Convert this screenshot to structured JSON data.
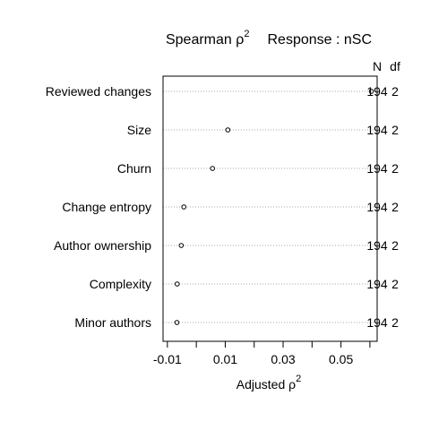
{
  "chart_data": {
    "type": "scatter",
    "title_left": "Spearman ρ",
    "title_left_sup": "2",
    "title_right": "Response : nSC",
    "xlabel": "Adjusted ρ",
    "xlabel_sup": "2",
    "xlim": [
      -0.0115,
      0.0625
    ],
    "x_ticks": [
      -0.01,
      0.01,
      0.03,
      0.05
    ],
    "x_tick_labels": [
      "-0.01",
      "0.01",
      "0.03",
      "0.05"
    ],
    "x_minor_ticks": [
      0.0,
      0.02,
      0.04,
      0.06
    ],
    "grid": "dotted horizontal",
    "right_columns": [
      "N",
      "df"
    ],
    "categories": [
      "Reviewed changes",
      "Size",
      "Churn",
      "Change entropy",
      "Author ownership",
      "Complexity",
      "Minor authors"
    ],
    "values": [
      0.0605,
      0.0109,
      0.0056,
      -0.0043,
      -0.0052,
      -0.0066,
      -0.0067
    ],
    "n": [
      "194",
      "194",
      "194",
      "194",
      "194",
      "194",
      "194"
    ],
    "df": [
      "2",
      "2",
      "2",
      "2",
      "2",
      "2",
      "2"
    ]
  }
}
